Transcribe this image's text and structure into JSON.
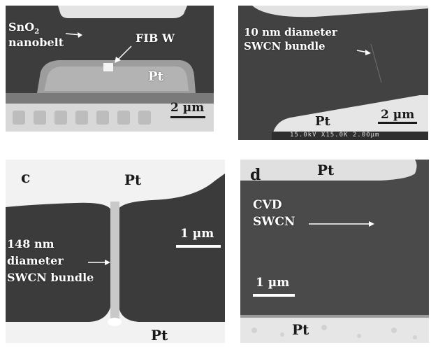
{
  "colors": {
    "substrate_dark": "#3b3b3b",
    "substrate_mid": "#4a4a4a",
    "pt_electrode": "#e6e6e6",
    "label": "#ffffff"
  },
  "panels": {
    "a": {
      "material_line1": "SnO",
      "material_sub": "2",
      "material_line2": "nanobelt",
      "fib_label": "FIB W",
      "pt_label": "Pt",
      "scale_label": "2 µm"
    },
    "b": {
      "bundle_line1": "10 nm diameter",
      "bundle_line2": "SWCN bundle",
      "pt_label": "Pt",
      "scale_label": "2 µm",
      "info_bar": "15.0kV X15.0K 2.00µm"
    },
    "c": {
      "panel_letter": "c",
      "pt_top": "Pt",
      "pt_bottom": "Pt",
      "scale_label": "1 µm",
      "bundle_line1": "148 nm",
      "bundle_line2": "diameter",
      "bundle_line3": "SWCN bundle"
    },
    "d": {
      "panel_letter": "d",
      "pt_top": "Pt",
      "pt_bottom": "Pt",
      "cvd_line1": "CVD",
      "cvd_line2": "SWCN",
      "scale_label": "1 µm"
    }
  }
}
